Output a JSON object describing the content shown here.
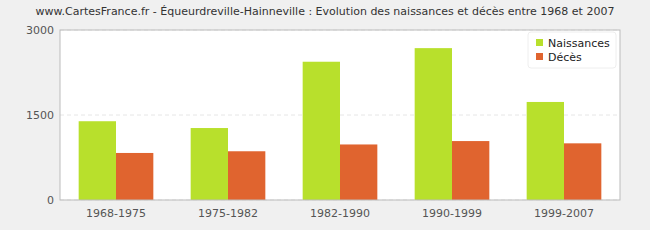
{
  "chart_data": {
    "type": "bar",
    "title": "www.CartesFrance.fr - Équeurdreville-Hainneville : Evolution des naissances et décès entre 1968 et 2007",
    "categories": [
      "1968-1975",
      "1975-1982",
      "1982-1990",
      "1990-1999",
      "1999-2007"
    ],
    "series": [
      {
        "name": "Naissances",
        "color": "#b8e02c",
        "values": [
          1390,
          1270,
          2440,
          2680,
          1730
        ]
      },
      {
        "name": "Décès",
        "color": "#e0642f",
        "values": [
          830,
          860,
          980,
          1040,
          1000
        ]
      }
    ],
    "ylim": [
      0,
      3000
    ],
    "yticks": [
      0,
      1500,
      3000
    ],
    "grid": true,
    "legend": "top-right"
  }
}
